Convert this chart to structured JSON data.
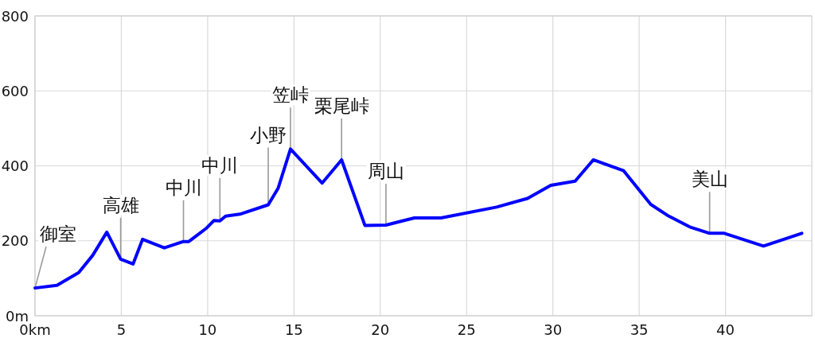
{
  "chart_data": {
    "type": "line",
    "x": [
      0,
      1.27,
      2.53,
      3.34,
      4.16,
      4.96,
      5.68,
      6.23,
      7.49,
      8.6,
      8.91,
      9.94,
      10.36,
      10.71,
      11.04,
      11.86,
      13.51,
      14.08,
      14.8,
      16.63,
      17.76,
      19.11,
      20.33,
      21.98,
      23.52,
      26.74,
      28.53,
      29.88,
      31.29,
      32.34,
      34.1,
      35.67,
      36.63,
      37.93,
      39.08,
      39.93,
      42.2,
      44.42
    ],
    "series": [
      {
        "color": "#0000ff",
        "values": [
          74,
          81,
          115,
          161,
          223,
          151,
          138,
          204,
          181,
          198,
          198,
          234,
          254,
          253,
          266,
          271,
          296,
          340,
          445,
          354,
          416,
          241,
          242,
          261,
          261,
          290,
          313,
          348,
          359,
          416,
          387,
          297,
          268,
          237,
          220,
          220,
          186,
          220
        ]
      }
    ],
    "xlim": [
      0,
      45
    ],
    "ylim": [
      0,
      800
    ],
    "xticks": [
      {
        "value": 0,
        "label": "0km"
      },
      5,
      10,
      15,
      20,
      25,
      30,
      35,
      40
    ],
    "yticks": [
      {
        "value": 0,
        "label": "0m"
      },
      200,
      400,
      600,
      800
    ],
    "grid": true,
    "annotations": [
      {
        "text": "御室",
        "x": 0,
        "y": 74
      },
      {
        "text": "高雄",
        "x": 4.96,
        "y": 151
      },
      {
        "text": "中川",
        "x": 8.6,
        "y": 198
      },
      {
        "text": "中川",
        "x": 10.71,
        "y": 253
      },
      {
        "text": "小野",
        "x": 13.51,
        "y": 296
      },
      {
        "text": "笠峠",
        "x": 14.8,
        "y": 445
      },
      {
        "text": "栗尾峠",
        "x": 17.76,
        "y": 416
      },
      {
        "text": "周山",
        "x": 20.33,
        "y": 242
      },
      {
        "text": "美山",
        "x": 39.08,
        "y": 220
      }
    ]
  }
}
